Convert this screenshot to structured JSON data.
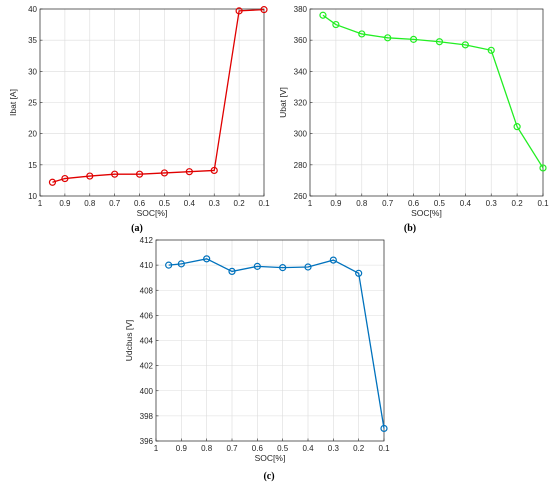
{
  "chart_data": [
    {
      "type": "line",
      "caption": "(a)",
      "xlabel": "SOC[%]",
      "ylabel": "Ibat [A]",
      "xlim": [
        1,
        0.1
      ],
      "ylim": [
        10,
        40
      ],
      "xticks": [
        "1",
        "0.9",
        "0.8",
        "0.7",
        "0.6",
        "0.5",
        "0.4",
        "0.3",
        "0.2",
        "0.1"
      ],
      "yticks": [
        "10",
        "15",
        "20",
        "25",
        "30",
        "35",
        "40"
      ],
      "grid": true,
      "color": "#e00000",
      "x": [
        0.95,
        0.9,
        0.8,
        0.7,
        0.6,
        0.5,
        0.4,
        0.3,
        0.2,
        0.1
      ],
      "y": [
        12.2,
        12.8,
        13.2,
        13.5,
        13.5,
        13.7,
        13.9,
        14.1,
        39.7,
        39.9
      ]
    },
    {
      "type": "line",
      "caption": "(b)",
      "xlabel": "SOC[%]",
      "ylabel": "Ubat [V]",
      "xlim": [
        1,
        0.1
      ],
      "ylim": [
        260,
        380
      ],
      "xticks": [
        "1",
        "0.9",
        "0.8",
        "0.7",
        "0.6",
        "0.5",
        "0.4",
        "0.3",
        "0.2",
        "0.1"
      ],
      "yticks": [
        "260",
        "280",
        "300",
        "320",
        "340",
        "360",
        "380"
      ],
      "grid": true,
      "color": "#22ee22",
      "x": [
        0.95,
        0.9,
        0.8,
        0.7,
        0.6,
        0.5,
        0.4,
        0.3,
        0.2,
        0.1
      ],
      "y": [
        376,
        370,
        364,
        361.5,
        360.5,
        359,
        357,
        353.5,
        304.5,
        278
      ]
    },
    {
      "type": "line",
      "caption": "(c)",
      "xlabel": "SOC[%]",
      "ylabel": "Udcbus [V]",
      "xlim": [
        1,
        0.1
      ],
      "ylim": [
        396,
        412
      ],
      "xticks": [
        "1",
        "0.9",
        "0.8",
        "0.7",
        "0.6",
        "0.5",
        "0.4",
        "0.3",
        "0.2",
        "0.1"
      ],
      "yticks": [
        "396",
        "398",
        "400",
        "402",
        "404",
        "406",
        "408",
        "410",
        "412"
      ],
      "grid": true,
      "color": "#0072bd",
      "x": [
        0.95,
        0.9,
        0.8,
        0.7,
        0.6,
        0.5,
        0.4,
        0.3,
        0.2,
        0.1
      ],
      "y": [
        410.0,
        410.1,
        410.5,
        409.5,
        409.9,
        409.8,
        409.85,
        410.4,
        409.35,
        397.0
      ]
    }
  ]
}
